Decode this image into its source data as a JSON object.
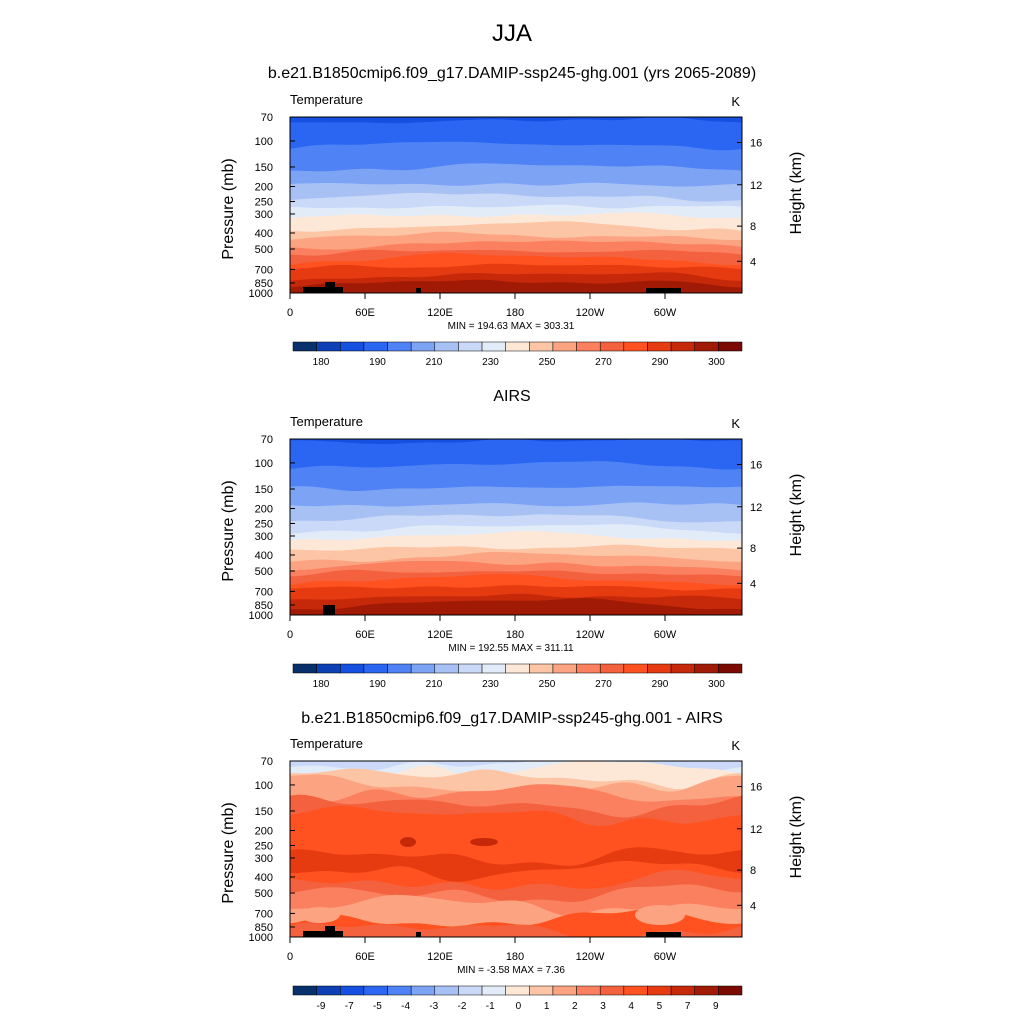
{
  "figure": {
    "title": "JJA"
  },
  "chart_data": [
    {
      "type": "heatmap",
      "title": "b.e21.B1850cmip6.f09_g17.DAMIP-ssp245-ghg.001 (yrs 2065-2089)",
      "left_label": "Temperature",
      "units": "K",
      "ylabel": "Pressure (mb)",
      "ylabel_right": "Height (km)",
      "x_ticks": [
        "0",
        "60E",
        "120E",
        "180",
        "120W",
        "60W"
      ],
      "y_ticks": [
        "70",
        "100",
        "150",
        "200",
        "250",
        "300",
        "400",
        "500",
        "700",
        "850",
        "1000"
      ],
      "y_ticks_right": [
        "16",
        "12",
        "8",
        "4"
      ],
      "stats": "MIN = 194.63  MAX = 303.31",
      "colorbar_labels": [
        "180",
        "190",
        "210",
        "230",
        "250",
        "270",
        "290",
        "300"
      ],
      "colors": [
        "#08306b",
        "#0d3fb5",
        "#1650e0",
        "#2a66f2",
        "#4f82f5",
        "#7da3f5",
        "#a7c1f5",
        "#cad9f7",
        "#e2ecf9",
        "#fde8d8",
        "#fcc5a6",
        "#fca482",
        "#fa8060",
        "#f4613e",
        "#ff5220",
        "#e63b10",
        "#c6280a",
        "#a11a05",
        "#7a0a02"
      ],
      "stats_min": 194.63,
      "stats_max": 303.31
    },
    {
      "type": "heatmap",
      "title": "AIRS",
      "left_label": "Temperature",
      "units": "K",
      "ylabel": "Pressure (mb)",
      "ylabel_right": "Height (km)",
      "x_ticks": [
        "0",
        "60E",
        "120E",
        "180",
        "120W",
        "60W"
      ],
      "y_ticks": [
        "70",
        "100",
        "150",
        "200",
        "250",
        "300",
        "400",
        "500",
        "700",
        "850",
        "1000"
      ],
      "y_ticks_right": [
        "16",
        "12",
        "8",
        "4"
      ],
      "stats": "MIN = 192.55  MAX = 311.11",
      "colorbar_labels": [
        "180",
        "190",
        "210",
        "230",
        "250",
        "270",
        "290",
        "300"
      ],
      "colors": [
        "#08306b",
        "#0d3fb5",
        "#1650e0",
        "#2a66f2",
        "#4f82f5",
        "#7da3f5",
        "#a7c1f5",
        "#cad9f7",
        "#e2ecf9",
        "#fde8d8",
        "#fcc5a6",
        "#fca482",
        "#fa8060",
        "#f4613e",
        "#ff5220",
        "#e63b10",
        "#c6280a",
        "#a11a05",
        "#7a0a02"
      ],
      "stats_min": 192.55,
      "stats_max": 311.11
    },
    {
      "type": "heatmap",
      "title": "b.e21.B1850cmip6.f09_g17.DAMIP-ssp245-ghg.001 - AIRS",
      "left_label": "Temperature",
      "units": "K",
      "ylabel": "Pressure (mb)",
      "ylabel_right": "Height (km)",
      "x_ticks": [
        "0",
        "60E",
        "120E",
        "180",
        "120W",
        "60W"
      ],
      "y_ticks": [
        "70",
        "100",
        "150",
        "200",
        "250",
        "300",
        "400",
        "500",
        "700",
        "850",
        "1000"
      ],
      "y_ticks_right": [
        "16",
        "12",
        "8",
        "4"
      ],
      "stats": "MIN =  -3.58  MAX =   7.36",
      "colorbar_labels": [
        "-9",
        "-7",
        "-5",
        "-4",
        "-3",
        "-2",
        "-1",
        "0",
        "1",
        "2",
        "3",
        "4",
        "5",
        "7",
        "9"
      ],
      "colors": [
        "#08306b",
        "#0d3fb5",
        "#1650e0",
        "#2a66f2",
        "#4f82f5",
        "#7da3f5",
        "#a7c1f5",
        "#cad9f7",
        "#e2ecf9",
        "#fde8d8",
        "#fcc5a6",
        "#fca482",
        "#fa8060",
        "#f4613e",
        "#ff5220",
        "#e63b10",
        "#c6280a",
        "#a11a05",
        "#7a0a02"
      ],
      "stats_min": -3.58,
      "stats_max": 7.36
    }
  ]
}
